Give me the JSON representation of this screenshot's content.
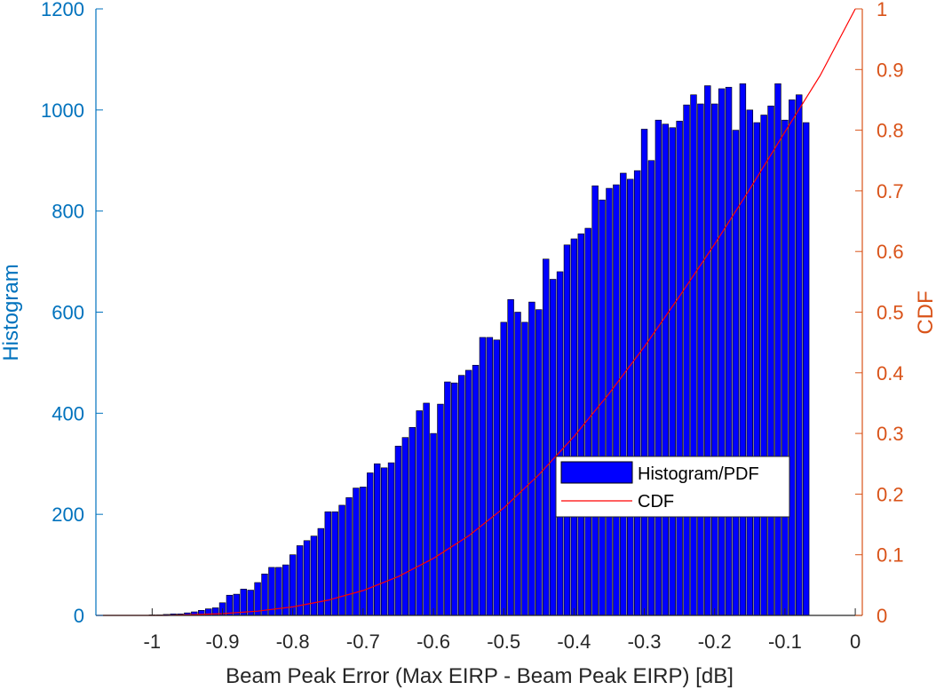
{
  "chart_data": {
    "type": "bar",
    "xlabel": "Beam Peak Error (Max EIRP - Beam Peak EIRP) [dB]",
    "ylabel_left": "Histogram",
    "ylabel_right": "CDF",
    "xlim": [
      -1.08,
      0.01
    ],
    "ylim_left": [
      0,
      1200
    ],
    "ylim_right": [
      0,
      1
    ],
    "x_ticks": [
      -1,
      -0.9,
      -0.8,
      -0.7,
      -0.6,
      -0.5,
      -0.4,
      -0.3,
      -0.2,
      -0.1,
      0
    ],
    "x_tick_labels": [
      "-1",
      "-0.9",
      "-0.8",
      "-0.7",
      "-0.6",
      "-0.5",
      "-0.4",
      "-0.3",
      "-0.2",
      "-0.1",
      "0"
    ],
    "y_left_ticks": [
      0,
      200,
      400,
      600,
      800,
      1000,
      1200
    ],
    "y_left_tick_labels": [
      "0",
      "200",
      "400",
      "600",
      "800",
      "1000",
      "1200"
    ],
    "y_right_ticks": [
      0,
      0.1,
      0.2,
      0.3,
      0.4,
      0.5,
      0.6,
      0.7,
      0.8,
      0.9,
      1
    ],
    "y_right_tick_labels": [
      "0",
      "0.1",
      "0.2",
      "0.3",
      "0.4",
      "0.5",
      "0.6",
      "0.7",
      "0.8",
      "0.9",
      "1"
    ],
    "bin_width": 0.01,
    "bin_start": -1.005,
    "bar_color": "#0000FF",
    "bar_edge_color": "#000000",
    "cdf_color": "#FF0000",
    "left_axis_color": "#0072BD",
    "right_axis_color": "#D95319",
    "legend_position": "center-right",
    "series": [
      {
        "name": "Histogram/PDF",
        "type": "bar",
        "values": [
          1,
          1,
          2,
          3,
          3,
          5,
          7,
          10,
          13,
          15,
          25,
          40,
          42,
          52,
          50,
          65,
          82,
          95,
          95,
          100,
          120,
          138,
          148,
          157,
          172,
          205,
          205,
          218,
          233,
          252,
          254,
          282,
          300,
          292,
          302,
          335,
          352,
          372,
          405,
          420,
          360,
          418,
          462,
          460,
          475,
          485,
          495,
          550,
          550,
          545,
          580,
          625,
          600,
          580,
          620,
          605,
          705,
          665,
          680,
          733,
          745,
          755,
          766,
          850,
          822,
          845,
          852,
          875,
          863,
          880,
          962,
          900,
          980,
          972,
          965,
          978,
          1010,
          1030,
          1012,
          1048,
          1012,
          1042,
          1045,
          960,
          1052,
          1000,
          975,
          990,
          1008,
          1052,
          980,
          1020,
          1030,
          975
        ]
      },
      {
        "name": "CDF",
        "type": "line",
        "x": [
          -1.08,
          -0.98,
          -0.95,
          -0.9,
          -0.85,
          -0.8,
          -0.75,
          -0.7,
          -0.65,
          -0.6,
          -0.55,
          -0.5,
          -0.45,
          -0.4,
          -0.35,
          -0.3,
          -0.25,
          -0.2,
          -0.15,
          -0.1,
          -0.05,
          0
        ],
        "values": [
          0,
          0,
          0.001,
          0.003,
          0.007,
          0.014,
          0.025,
          0.041,
          0.064,
          0.094,
          0.131,
          0.177,
          0.232,
          0.295,
          0.366,
          0.443,
          0.526,
          0.612,
          0.703,
          0.797,
          0.89,
          1.0
        ]
      }
    ]
  }
}
